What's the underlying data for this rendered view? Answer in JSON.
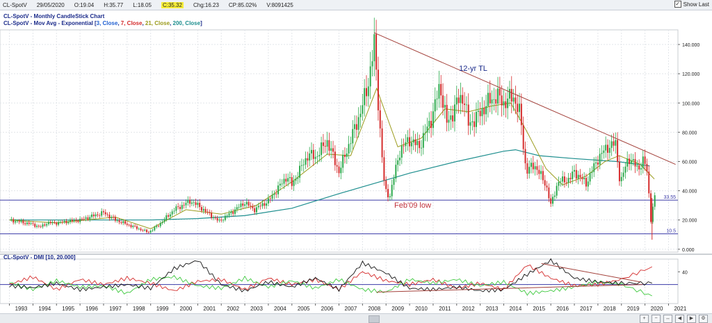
{
  "topbar": {
    "symbol": "CL-SpotV",
    "date": "29/05/2020",
    "open": "O:19.04",
    "high": "H:35.77",
    "low": "L:18.05",
    "close": "C:35.32",
    "change": "Chg:16.23",
    "change_pct": "CP:85.02%",
    "volume": "V:8091425",
    "show_last_label": "Show Last"
  },
  "legend": {
    "title": "CL-SpotV - Monthly CandleStick Chart",
    "mov_avg_prefix": "CL-SpotV - Mov Avg - Exponential [",
    "mov_avg_parts": [
      {
        "text": "3, Close",
        "color": "#1f5fd1"
      },
      {
        "text": ", ",
        "color": "#1a2a8a"
      },
      {
        "text": "7, Close",
        "color": "#d42a2a"
      },
      {
        "text": ", ",
        "color": "#1a2a8a"
      },
      {
        "text": "21, Close",
        "color": "#9a9a1a"
      },
      {
        "text": ", ",
        "color": "#1a2a8a"
      },
      {
        "text": "200, Close",
        "color": "#1d8e8e"
      },
      {
        "text": "]",
        "color": "#1a2a8a"
      }
    ],
    "dmi_label": "CL-SpotV - DMI [10, 20.000]"
  },
  "annotations": {
    "trendline_label": "12-yr TL",
    "feb09_label": "Feb'09 low",
    "level_upper": "33.55",
    "level_lower": "10.5"
  },
  "chart_data": [
    {
      "type": "candlestick",
      "title": "CL-SpotV - Monthly CandleStick Chart",
      "x_tick_labels": [
        "1993",
        "1994",
        "1995",
        "1996",
        "1997",
        "1998",
        "1999",
        "2000",
        "2001",
        "2002",
        "2003",
        "2004",
        "2005",
        "2006",
        "2007",
        "2008",
        "2009",
        "2010",
        "2011",
        "2012",
        "2013",
        "2014",
        "2015",
        "2016",
        "2017",
        "2018",
        "2019",
        "2020",
        "2021"
      ],
      "y_tick_labels": [
        "0.000",
        "20.000",
        "40.000",
        "60.000",
        "80.000",
        "100.000",
        "120.000",
        "140.000"
      ],
      "ylim": [
        -2,
        150
      ],
      "xlim": [
        1992.6,
        2021.4
      ],
      "grid": true,
      "close_path": [
        [
          1993.0,
          20
        ],
        [
          1994.0,
          17
        ],
        [
          1994.3,
          15
        ],
        [
          1994.6,
          18
        ],
        [
          1995.0,
          18
        ],
        [
          1996.0,
          20
        ],
        [
          1996.8,
          24
        ],
        [
          1997.0,
          25
        ],
        [
          1997.5,
          20
        ],
        [
          1998.0,
          17
        ],
        [
          1998.9,
          11.5
        ],
        [
          1999.3,
          16
        ],
        [
          2000.0,
          27
        ],
        [
          2000.7,
          33
        ],
        [
          2001.0,
          30
        ],
        [
          2001.9,
          19
        ],
        [
          2002.5,
          26
        ],
        [
          2003.0,
          32
        ],
        [
          2003.4,
          27
        ],
        [
          2004.0,
          33
        ],
        [
          2004.8,
          50
        ],
        [
          2005.0,
          44
        ],
        [
          2005.7,
          65
        ],
        [
          2006.0,
          63
        ],
        [
          2006.5,
          74
        ],
        [
          2007.0,
          53
        ],
        [
          2007.5,
          75
        ],
        [
          2007.9,
          93
        ],
        [
          2008.2,
          110
        ],
        [
          2008.5,
          140
        ],
        [
          2008.8,
          70
        ],
        [
          2008.95,
          40
        ],
        [
          2009.15,
          36
        ],
        [
          2009.6,
          68
        ],
        [
          2010.0,
          75
        ],
        [
          2010.4,
          70
        ],
        [
          2010.9,
          88
        ],
        [
          2011.3,
          112
        ],
        [
          2011.6,
          85
        ],
        [
          2012.0,
          100
        ],
        [
          2012.3,
          105
        ],
        [
          2012.5,
          85
        ],
        [
          2013.0,
          93
        ],
        [
          2013.3,
          100
        ],
        [
          2013.7,
          105
        ],
        [
          2014.0,
          100
        ],
        [
          2014.4,
          105
        ],
        [
          2014.7,
          92
        ],
        [
          2014.95,
          53
        ],
        [
          2015.3,
          58
        ],
        [
          2015.8,
          44
        ],
        [
          2016.0,
          30
        ],
        [
          2016.3,
          46
        ],
        [
          2016.8,
          48
        ],
        [
          2017.0,
          53
        ],
        [
          2017.5,
          45
        ],
        [
          2018.0,
          62
        ],
        [
          2018.4,
          70
        ],
        [
          2018.75,
          72
        ],
        [
          2018.95,
          45
        ],
        [
          2019.3,
          63
        ],
        [
          2019.7,
          55
        ],
        [
          2019.95,
          61
        ],
        [
          2020.1,
          52
        ],
        [
          2020.25,
          20
        ],
        [
          2020.4,
          35.32
        ]
      ],
      "ema200": [
        [
          1993.0,
          20
        ],
        [
          1997.0,
          20
        ],
        [
          1999.0,
          20
        ],
        [
          2001.0,
          21
        ],
        [
          2003.0,
          23
        ],
        [
          2005.0,
          28
        ],
        [
          2007.0,
          38
        ],
        [
          2008.5,
          45
        ],
        [
          2010.0,
          52
        ],
        [
          2012.0,
          60
        ],
        [
          2014.0,
          67
        ],
        [
          2014.5,
          68
        ],
        [
          2015.5,
          64
        ],
        [
          2017.0,
          62
        ],
        [
          2018.8,
          60
        ],
        [
          2020.2,
          57
        ]
      ],
      "ema21": [
        [
          1993.0,
          20
        ],
        [
          1995.0,
          18
        ],
        [
          1997.5,
          22
        ],
        [
          1999.0,
          14
        ],
        [
          2000.5,
          27
        ],
        [
          2002.0,
          24
        ],
        [
          2003.5,
          30
        ],
        [
          2005.0,
          46
        ],
        [
          2006.5,
          65
        ],
        [
          2007.5,
          64
        ],
        [
          2008.6,
          110
        ],
        [
          2009.5,
          70
        ],
        [
          2010.5,
          76
        ],
        [
          2011.5,
          96
        ],
        [
          2012.5,
          94
        ],
        [
          2013.5,
          98
        ],
        [
          2014.3,
          100
        ],
        [
          2015.0,
          80
        ],
        [
          2015.8,
          55
        ],
        [
          2016.5,
          44
        ],
        [
          2017.5,
          50
        ],
        [
          2018.3,
          60
        ],
        [
          2018.9,
          64
        ],
        [
          2019.8,
          58
        ],
        [
          2020.4,
          48
        ]
      ],
      "levels": [
        33.55,
        10.5
      ],
      "trendline": [
        [
          2008.5,
          148
        ],
        [
          2021.3,
          58
        ]
      ]
    },
    {
      "type": "line",
      "title": "CL-SpotV - DMI [10, 20.000]",
      "y_tick_labels": [
        "40"
      ],
      "ylim": [
        -10,
        60
      ],
      "series": [
        {
          "color": "#d42a2a",
          "values": [
            [
              1993,
              20
            ],
            [
              1994,
              32
            ],
            [
              1995,
              12
            ],
            [
              1996,
              28
            ],
            [
              1997,
              20
            ],
            [
              1998,
              30
            ],
            [
              1999,
              22
            ],
            [
              2000,
              10
            ],
            [
              2001,
              25
            ],
            [
              2002,
              28
            ],
            [
              2003,
              12
            ],
            [
              2004,
              30
            ],
            [
              2005,
              20
            ],
            [
              2006,
              28
            ],
            [
              2007,
              12
            ],
            [
              2008,
              40
            ],
            [
              2009,
              26
            ],
            [
              2010,
              20
            ],
            [
              2011,
              28
            ],
            [
              2012,
              14
            ],
            [
              2013,
              22
            ],
            [
              2014,
              12
            ],
            [
              2015,
              51
            ],
            [
              2016,
              30
            ],
            [
              2017,
              18
            ],
            [
              2018,
              20
            ],
            [
              2019,
              28
            ],
            [
              2020.3,
              48
            ]
          ]
        },
        {
          "color": "#3ec93e",
          "values": [
            [
              1993,
              23
            ],
            [
              1994,
              12
            ],
            [
              1995,
              26
            ],
            [
              1996,
              16
            ],
            [
              1997,
              18
            ],
            [
              1998,
              6
            ],
            [
              1999,
              28
            ],
            [
              2000,
              32
            ],
            [
              2001,
              18
            ],
            [
              2002,
              14
            ],
            [
              2003,
              30
            ],
            [
              2004,
              16
            ],
            [
              2005,
              26
            ],
            [
              2006,
              14
            ],
            [
              2007,
              28
            ],
            [
              2008,
              12
            ],
            [
              2009,
              8
            ],
            [
              2010,
              28
            ],
            [
              2011,
              22
            ],
            [
              2012,
              28
            ],
            [
              2013,
              18
            ],
            [
              2014,
              24
            ],
            [
              2015,
              6
            ],
            [
              2016,
              10
            ],
            [
              2017,
              16
            ],
            [
              2018,
              24
            ],
            [
              2019,
              20
            ],
            [
              2020.3,
              2
            ]
          ]
        },
        {
          "color": "#111111",
          "values": [
            [
              1993,
              18
            ],
            [
              1994,
              15
            ],
            [
              1995,
              22
            ],
            [
              1996,
              12
            ],
            [
              1997,
              16
            ],
            [
              1998,
              20
            ],
            [
              1999,
              14
            ],
            [
              2000,
              45
            ],
            [
              2001,
              58
            ],
            [
              2002,
              20
            ],
            [
              2003,
              10
            ],
            [
              2004,
              24
            ],
            [
              2005,
              16
            ],
            [
              2006,
              30
            ],
            [
              2007,
              12
            ],
            [
              2008,
              54
            ],
            [
              2009,
              38
            ],
            [
              2010,
              14
            ],
            [
              2011,
              12
            ],
            [
              2012,
              16
            ],
            [
              2013,
              10
            ],
            [
              2014,
              12
            ],
            [
              2015,
              36
            ],
            [
              2016,
              58
            ],
            [
              2017,
              30
            ],
            [
              2018,
              24
            ],
            [
              2019,
              22
            ],
            [
              2020.3,
              22
            ]
          ]
        }
      ]
    }
  ]
}
